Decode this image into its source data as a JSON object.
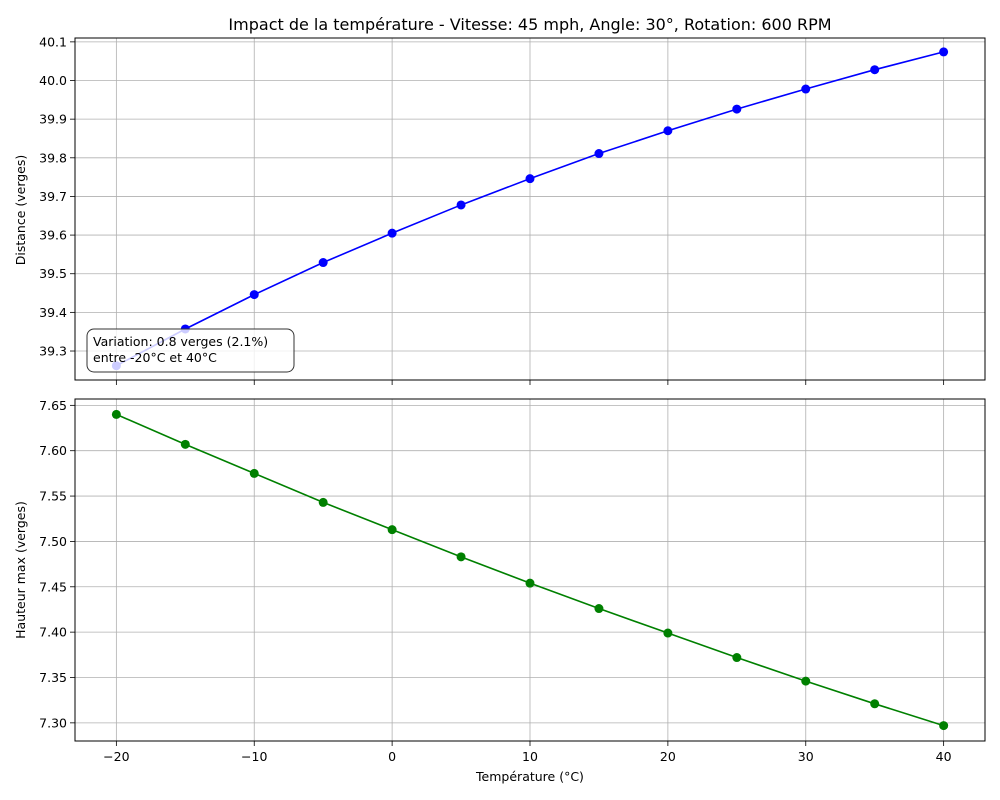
{
  "chart_data": [
    {
      "type": "line",
      "title": "Impact de la température - Vitesse: 45 mph, Angle: 30°, Rotation: 600 RPM",
      "xlabel": "",
      "ylabel": "Distance (verges)",
      "x": [
        -20,
        -15,
        -10,
        -5,
        0,
        5,
        10,
        15,
        20,
        25,
        30,
        35,
        40
      ],
      "series": [
        {
          "values": [
            39.262,
            39.357,
            39.446,
            39.529,
            39.605,
            39.678,
            39.746,
            39.811,
            39.87,
            39.926,
            39.978,
            40.028,
            40.074
          ],
          "color": "#0000ff",
          "marker": "circle"
        }
      ],
      "xlim": [
        -23,
        43
      ],
      "ylim": [
        39.225,
        40.11
      ],
      "xticks": [
        -20,
        -10,
        0,
        10,
        20,
        30,
        40
      ],
      "yticks": [
        39.3,
        39.4,
        39.5,
        39.6,
        39.7,
        39.8,
        39.9,
        40.0,
        40.1
      ],
      "ytick_labels": [
        "39.3",
        "39.4",
        "39.5",
        "39.6",
        "39.7",
        "39.8",
        "39.9",
        "40.0",
        "40.1"
      ],
      "show_xtick_labels": false,
      "grid": true,
      "annotation": {
        "lines": [
          "Variation: 0.8 verges (2.1%)",
          "entre -20°C et 40°C"
        ],
        "placement": "bottom-left"
      }
    },
    {
      "type": "line",
      "xlabel": "Température (°C)",
      "ylabel": "Hauteur max (verges)",
      "x": [
        -20,
        -15,
        -10,
        -5,
        0,
        5,
        10,
        15,
        20,
        25,
        30,
        35,
        40
      ],
      "series": [
        {
          "values": [
            7.64,
            7.607,
            7.575,
            7.543,
            7.513,
            7.483,
            7.454,
            7.426,
            7.399,
            7.372,
            7.346,
            7.321,
            7.297
          ],
          "color": "#008000",
          "marker": "circle"
        }
      ],
      "xlim": [
        -23,
        43
      ],
      "ylim": [
        7.28,
        7.657
      ],
      "xticks": [
        -20,
        -10,
        0,
        10,
        20,
        30,
        40
      ],
      "xtick_labels": [
        "−20",
        "−10",
        "0",
        "10",
        "20",
        "30",
        "40"
      ],
      "yticks": [
        7.3,
        7.35,
        7.4,
        7.45,
        7.5,
        7.55,
        7.6,
        7.65
      ],
      "ytick_labels": [
        "7.30",
        "7.35",
        "7.40",
        "7.45",
        "7.50",
        "7.55",
        "7.60",
        "7.65"
      ],
      "show_xtick_labels": true,
      "grid": true
    }
  ]
}
